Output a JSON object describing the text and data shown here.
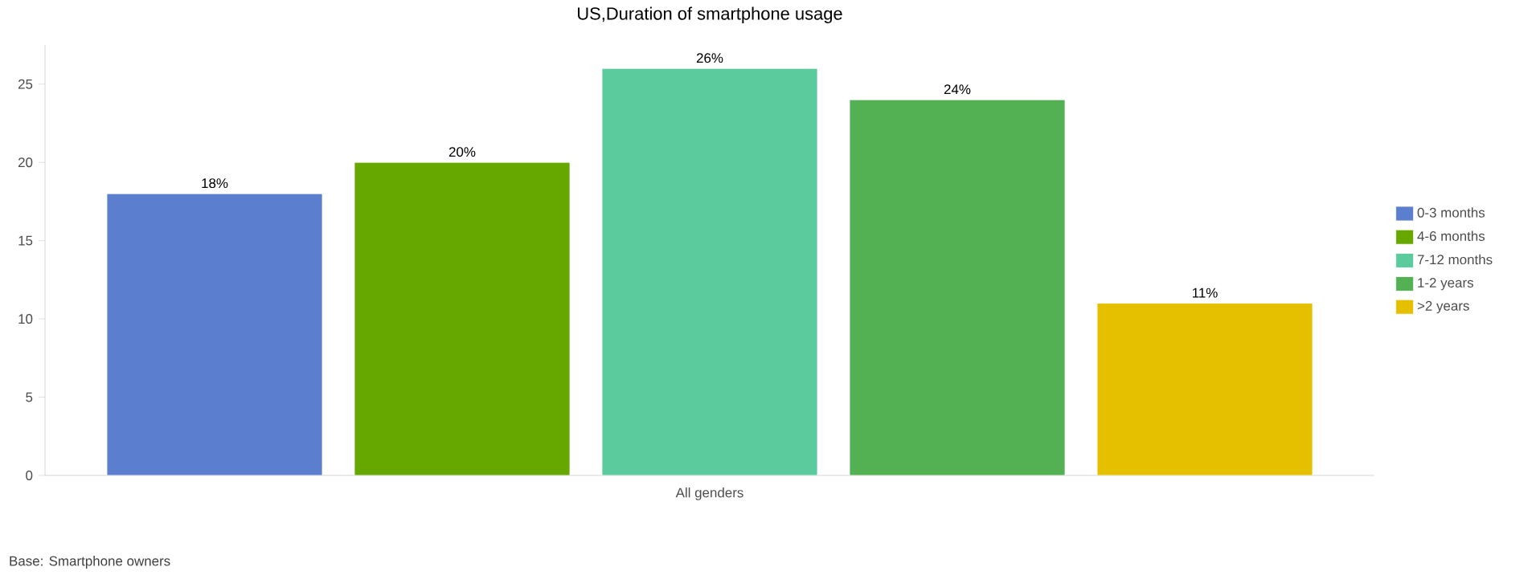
{
  "chart_data": {
    "type": "bar",
    "title": "US,Duration of smartphone usage",
    "categories": [
      "All genders"
    ],
    "series": [
      {
        "name": "0-3 months",
        "color": "#5b7fce",
        "values": [
          18
        ],
        "value_labels": [
          "18%"
        ]
      },
      {
        "name": "4-6 months",
        "color": "#66a800",
        "values": [
          20
        ],
        "value_labels": [
          "20%"
        ]
      },
      {
        "name": "7-12 months",
        "color": "#5bcb9e",
        "values": [
          26
        ],
        "value_labels": [
          "26%"
        ]
      },
      {
        "name": "1-2 years",
        "color": "#53b153",
        "values": [
          24
        ],
        "value_labels": [
          "24%"
        ]
      },
      {
        "name": ">2 years",
        "color": "#e5c000",
        "values": [
          11
        ],
        "value_labels": [
          "11%"
        ]
      }
    ],
    "ylim": [
      0,
      27.5
    ],
    "yticks": [
      0,
      5,
      10,
      15,
      20,
      25
    ],
    "legend": "right",
    "annotations": [
      "Base:  Smartphone owners"
    ]
  }
}
